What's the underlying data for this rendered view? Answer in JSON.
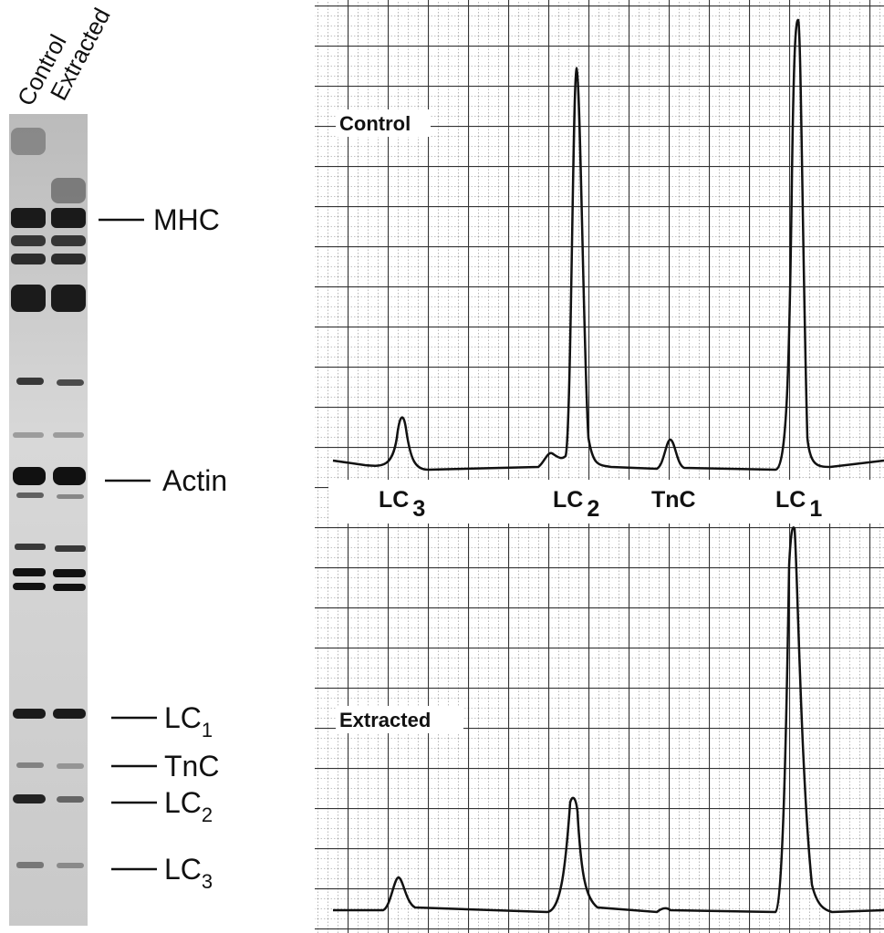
{
  "gel": {
    "lanes": [
      "Control",
      "Extracted"
    ],
    "bands": [
      {
        "label": "MHC"
      },
      {
        "label": "Actin"
      },
      {
        "label": "LC",
        "sub": "1"
      },
      {
        "label": "TnC"
      },
      {
        "label": "LC",
        "sub": "2"
      },
      {
        "label": "LC",
        "sub": "3"
      }
    ]
  },
  "densitometry": {
    "panels": [
      "Control",
      "Extracted"
    ],
    "peaks": [
      {
        "label": "LC",
        "sub": "3"
      },
      {
        "label": "LC",
        "sub": "2"
      },
      {
        "label": "TnC"
      },
      {
        "label": "LC",
        "sub": "1"
      }
    ]
  }
}
